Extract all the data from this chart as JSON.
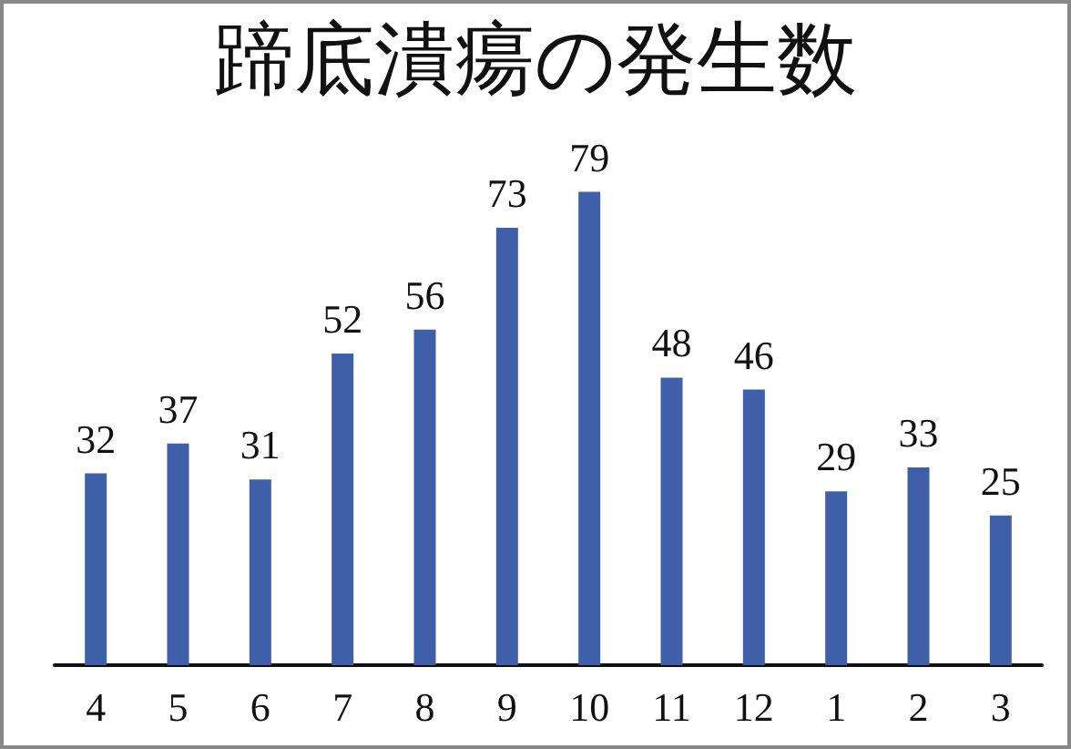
{
  "chart_data": {
    "type": "bar",
    "title": "蹄底潰瘍の発生数",
    "categories": [
      "4",
      "5",
      "6",
      "7",
      "8",
      "9",
      "10",
      "11",
      "12",
      "1",
      "2",
      "3"
    ],
    "values": [
      32,
      37,
      31,
      52,
      56,
      73,
      79,
      48,
      46,
      29,
      33,
      25
    ],
    "color": "#3f5fa8",
    "data_labels": true
  }
}
